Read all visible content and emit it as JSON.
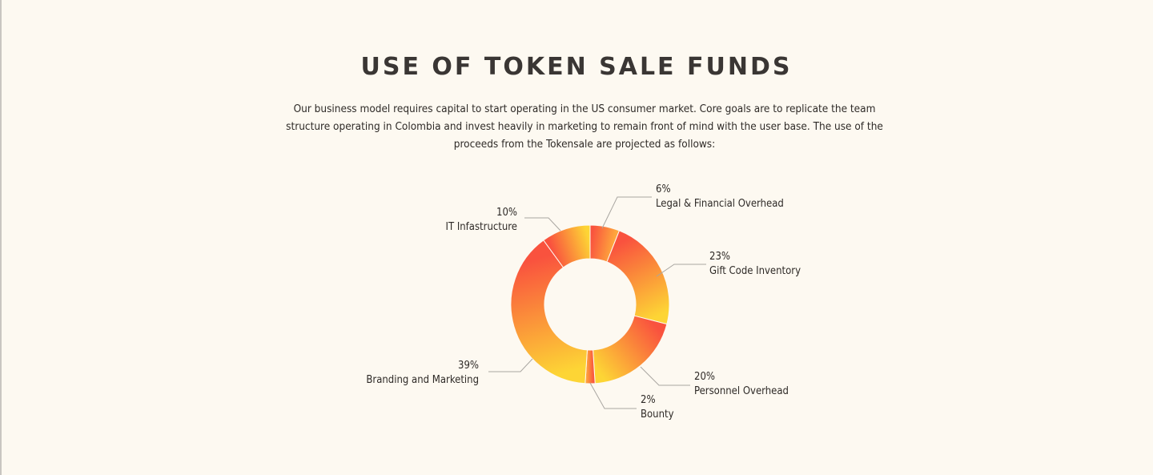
{
  "title": "USE OF TOKEN SALE FUNDS",
  "intro": "Our business model requires capital to start operating in the US consumer market. Core goals are to replicate the team structure operating in Colombia and invest heavily in marketing to remain front of mind with the user base. The use of the proceeds from the Tokensale are projected as follows:",
  "chart_data": {
    "type": "pie",
    "variant": "donut",
    "categories": [
      "Legal & Financial Overhead",
      "Gift Code Inventory",
      "Personnel Overhead",
      "Bounty",
      "Branding and Marketing",
      "IT Infastructure"
    ],
    "values": [
      6,
      23,
      20,
      2,
      39,
      10
    ],
    "value_labels": [
      "6%",
      "23%",
      "20%",
      "2%",
      "39%",
      "10%"
    ],
    "colors": {
      "light": "#fdd535",
      "mid": "#fea63c",
      "dark": "#f9523e",
      "leader": "#a9a6a1"
    }
  }
}
